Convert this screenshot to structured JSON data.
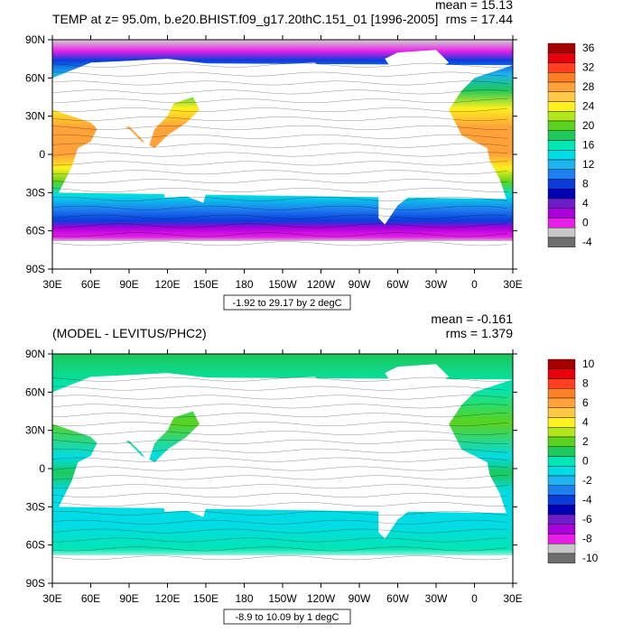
{
  "chart_data": [
    {
      "type": "heatmap",
      "title": "TEMP at z=  95.0m, b.e20.BHIST.f09_g17.20thC.151_01 [1996-2005]",
      "stats": {
        "mean": "mean = 15.13",
        "rms": "rms = 17.44"
      },
      "xlabel": "",
      "ylabel": "",
      "x_ticks": [
        "30E",
        "60E",
        "90E",
        "120E",
        "150E",
        "180",
        "150W",
        "120W",
        "90W",
        "60W",
        "30W",
        "0",
        "30E"
      ],
      "y_ticks": [
        "90N",
        "60N",
        "30N",
        "0",
        "30S",
        "60S",
        "90S"
      ],
      "x_tick_values": [
        30,
        60,
        90,
        120,
        150,
        180,
        210,
        240,
        270,
        300,
        330,
        360,
        390
      ],
      "y_tick_values": [
        90,
        60,
        30,
        0,
        -30,
        -60,
        -90
      ],
      "xlim": [
        30,
        390
      ],
      "ylim": [
        -90,
        90
      ],
      "contour_info": "-1.92 to 29.17 by 2 degC",
      "colorbar_labels": [
        "36",
        "32",
        "28",
        "24",
        "20",
        "16",
        "12",
        "8",
        "4",
        "0",
        "-4"
      ],
      "colorbar_colors": [
        "#a50000",
        "#e8000b",
        "#ff3f1f",
        "#ff7f27",
        "#ffa23a",
        "#ffc846",
        "#fff01e",
        "#b4e61e",
        "#5ad21e",
        "#1ec85a",
        "#00e6b4",
        "#00dce6",
        "#1eb4f0",
        "#1e7ff0",
        "#0a3cdc",
        "#0000b4",
        "#6e1ec8",
        "#aa00dc",
        "#e61ee6",
        "#c8c8c8",
        "#6e6e6e"
      ]
    },
    {
      "type": "heatmap",
      "title": "(MODEL - LEVITUS/PHC2)",
      "stats": {
        "mean": "mean = -0.161",
        "rms": "rms = 1.379"
      },
      "xlabel": "",
      "ylabel": "",
      "x_ticks": [
        "30E",
        "60E",
        "90E",
        "120E",
        "150E",
        "180",
        "150W",
        "120W",
        "90W",
        "60W",
        "30W",
        "0",
        "30E"
      ],
      "y_ticks": [
        "90N",
        "60N",
        "30N",
        "0",
        "30S",
        "60S",
        "90S"
      ],
      "x_tick_values": [
        30,
        60,
        90,
        120,
        150,
        180,
        210,
        240,
        270,
        300,
        330,
        360,
        390
      ],
      "y_tick_values": [
        90,
        60,
        30,
        0,
        -30,
        -60,
        -90
      ],
      "xlim": [
        30,
        390
      ],
      "ylim": [
        -90,
        90
      ],
      "contour_info": "-8.9 to 10.09 by 1 degC",
      "colorbar_labels": [
        "10",
        "8",
        "6",
        "4",
        "2",
        "0",
        "-2",
        "-4",
        "-6",
        "-8",
        "-10"
      ],
      "colorbar_colors": [
        "#a50000",
        "#e8000b",
        "#ff3f1f",
        "#ff7f27",
        "#ffa23a",
        "#ffc846",
        "#fff01e",
        "#b4e61e",
        "#5ad21e",
        "#1ec85a",
        "#00e6b4",
        "#00dce6",
        "#1eb4f0",
        "#1e7ff0",
        "#0a3cdc",
        "#0000b4",
        "#6e1ec8",
        "#aa00dc",
        "#e61ee6",
        "#c8c8c8",
        "#6e6e6e"
      ]
    }
  ]
}
